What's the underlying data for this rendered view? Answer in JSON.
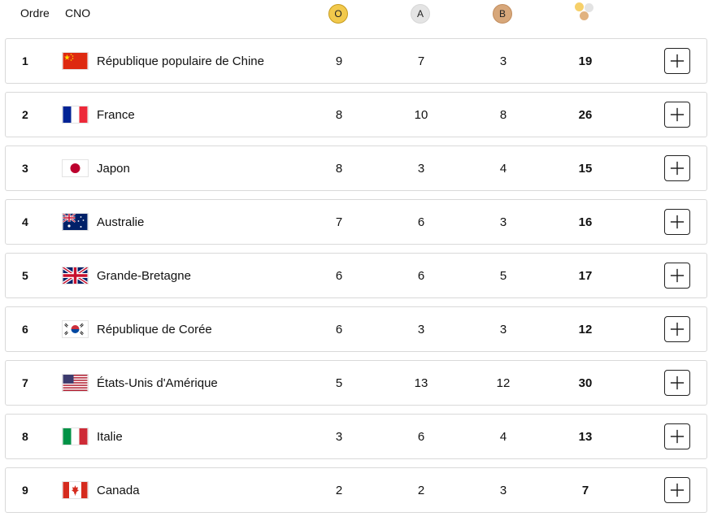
{
  "header": {
    "rank_label": "Ordre",
    "noc_label": "CNO",
    "gold_badge": "O",
    "silver_badge": "A",
    "bronze_badge": "B"
  },
  "colors": {
    "gold": "#f2c94c",
    "silver": "#e4e4e4",
    "bronze": "#d7a77a"
  },
  "rows": [
    {
      "rank": "1",
      "country": "République populaire de Chine",
      "flag": "china-flag-icon",
      "gold": "9",
      "silver": "7",
      "bronze": "3",
      "total": "19"
    },
    {
      "rank": "2",
      "country": "France",
      "flag": "france-flag-icon",
      "gold": "8",
      "silver": "10",
      "bronze": "8",
      "total": "26"
    },
    {
      "rank": "3",
      "country": "Japon",
      "flag": "japan-flag-icon",
      "gold": "8",
      "silver": "3",
      "bronze": "4",
      "total": "15"
    },
    {
      "rank": "4",
      "country": "Australie",
      "flag": "australia-flag-icon",
      "gold": "7",
      "silver": "6",
      "bronze": "3",
      "total": "16"
    },
    {
      "rank": "5",
      "country": "Grande-Bretagne",
      "flag": "great-britain-flag-icon",
      "gold": "6",
      "silver": "6",
      "bronze": "5",
      "total": "17"
    },
    {
      "rank": "6",
      "country": "République de Corée",
      "flag": "korea-flag-icon",
      "gold": "6",
      "silver": "3",
      "bronze": "3",
      "total": "12"
    },
    {
      "rank": "7",
      "country": "États-Unis d'Amérique",
      "flag": "usa-flag-icon",
      "gold": "5",
      "silver": "13",
      "bronze": "12",
      "total": "30"
    },
    {
      "rank": "8",
      "country": "Italie",
      "flag": "italy-flag-icon",
      "gold": "3",
      "silver": "6",
      "bronze": "4",
      "total": "13"
    },
    {
      "rank": "9",
      "country": "Canada",
      "flag": "canada-flag-icon",
      "gold": "2",
      "silver": "2",
      "bronze": "3",
      "total": "7"
    }
  ]
}
